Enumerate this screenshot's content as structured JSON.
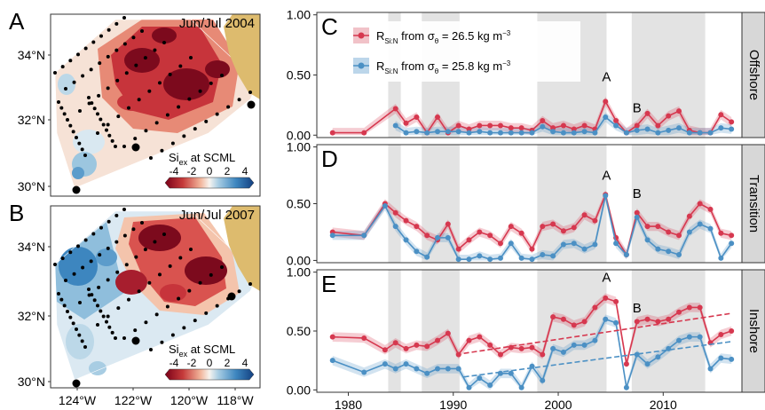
{
  "maps": [
    {
      "panel_letter": "A",
      "title": "Jun/Jul 2004",
      "colorbar_label_main": "Si",
      "colorbar_label_sub": "ex",
      "colorbar_label_rest": " at SCML",
      "colorbar_ticks": [
        "-4",
        "-2",
        "0",
        "2",
        "4"
      ]
    },
    {
      "panel_letter": "B",
      "title": "Jun/Jul 2007",
      "colorbar_label_main": "Si",
      "colorbar_label_sub": "ex",
      "colorbar_label_rest": " at SCML",
      "colorbar_ticks": [
        "-4",
        "-2",
        "0",
        "2",
        "4"
      ]
    }
  ],
  "map_axes": {
    "lat_labels": [
      "34°N",
      "32°N",
      "30°N"
    ],
    "lon_labels": [
      "124°W",
      "122°W",
      "120°W",
      "118°W"
    ]
  },
  "colors": {
    "red_series": "#d6384f",
    "blue_series": "#4b90c4",
    "land": "#ddbb6e",
    "strip_bg": "#d7d7d7",
    "shade": "#e3e3e3"
  },
  "legend": {
    "red_main": "R",
    "red_sub": "Si:N",
    "red_rest": " from σ",
    "red_rest_sub": "θ",
    "red_value": " = 26.5 kg m",
    "red_sup": "−3",
    "blue_main": "R",
    "blue_sub": "Si:N",
    "blue_rest": " from σ",
    "blue_rest_sub": "θ",
    "blue_value": " = 25.8 kg m",
    "blue_sup": "−3"
  },
  "chart_data": {
    "type": "line",
    "x_ticks": [
      "1980",
      "1990",
      "2000",
      "2010"
    ],
    "xlim": [
      1977,
      2017.5
    ],
    "shaded_periods": [
      [
        1983.8,
        1985
      ],
      [
        1987,
        1990.6
      ],
      [
        1998,
        2004.6
      ],
      [
        2007,
        2014
      ]
    ],
    "panels": [
      {
        "letter": "C",
        "strip": "Offshore",
        "ylim": [
          -0.02,
          1.02
        ],
        "y_ticks": [
          "0.00",
          "0.50",
          "1.00"
        ],
        "annotations": [
          {
            "text": "A",
            "x": 2004.6,
            "y": 0.45
          },
          {
            "text": "B",
            "x": 2007.5,
            "y": 0.19
          }
        ],
        "series": [
          {
            "color": "red",
            "x": [
              1978.5,
              1981.5,
              1984.5,
              1985.5,
              1986.5,
              1987.5,
              1988.5,
              1989.5,
              1990.5,
              1991.5,
              1992.5,
              1993.5,
              1994.5,
              1995.5,
              1996.5,
              1997.5,
              1998.5,
              1999.5,
              2000.5,
              2001.5,
              2002.5,
              2003.5,
              2004.5,
              2005.5,
              2006.5,
              2007.5,
              2008.5,
              2009.5,
              2010.5,
              2011.5,
              2012.5,
              2013.5,
              2014.5,
              2015.5,
              2016.5
            ],
            "values": [
              0.02,
              0.02,
              0.22,
              0.1,
              0.15,
              0.02,
              0.15,
              0.02,
              0.08,
              0.05,
              0.08,
              0.08,
              0.08,
              0.06,
              0.06,
              0.04,
              0.12,
              0.06,
              0.08,
              0.05,
              0.08,
              0.05,
              0.28,
              0.12,
              0.02,
              0.08,
              0.18,
              0.08,
              0.16,
              0.2,
              0.04,
              0.02,
              0.02,
              0.17,
              0.11
            ]
          },
          {
            "color": "blue",
            "x": [
              1984.5,
              1985.5,
              1986.5,
              1987.5,
              1988.5,
              1989.5,
              1990.5,
              1991.5,
              1992.5,
              1993.5,
              1994.5,
              1995.5,
              1996.5,
              1997.5,
              1998.5,
              1999.5,
              2000.5,
              2001.5,
              2002.5,
              2003.5,
              2004.5,
              2005.5,
              2006.5,
              2007.5,
              2008.5,
              2009.5,
              2010.5,
              2011.5,
              2012.5,
              2013.5,
              2014.5,
              2015.5,
              2016.5
            ],
            "values": [
              0.08,
              0.02,
              0.03,
              0.02,
              0.03,
              0.03,
              0.03,
              0.02,
              0.03,
              0.02,
              0.02,
              0.02,
              0.02,
              0.02,
              0.07,
              0.03,
              0.02,
              0.02,
              0.03,
              0.02,
              0.15,
              0.08,
              0.02,
              0.04,
              0.05,
              0.02,
              0.04,
              0.06,
              0.02,
              0.02,
              0.02,
              0.06,
              0.05
            ]
          }
        ]
      },
      {
        "letter": "D",
        "strip": "Transition",
        "ylim": [
          -0.02,
          1.02
        ],
        "y_ticks": [
          "0.00",
          "0.50",
          "1.00"
        ],
        "annotations": [
          {
            "text": "A",
            "x": 2004.6,
            "y": 0.71
          },
          {
            "text": "B",
            "x": 2007.5,
            "y": 0.55
          }
        ],
        "series": [
          {
            "color": "red",
            "x": [
              1978.5,
              1981.5,
              1983.5,
              1984.5,
              1985.5,
              1986.5,
              1987.5,
              1988.5,
              1989.5,
              1990.5,
              1991.5,
              1992.5,
              1993.5,
              1994.5,
              1995.5,
              1996.5,
              1997.5,
              1998.5,
              1999.5,
              2000.5,
              2001.5,
              2002.5,
              2003.5,
              2004.5,
              2005.5,
              2006.5,
              2007.5,
              2008.5,
              2009.5,
              2010.5,
              2011.5,
              2012.5,
              2013.5,
              2014.5,
              2015.5,
              2016.5
            ],
            "values": [
              0.25,
              0.22,
              0.5,
              0.42,
              0.35,
              0.3,
              0.22,
              0.18,
              0.32,
              0.1,
              0.18,
              0.25,
              0.22,
              0.15,
              0.3,
              0.24,
              0.1,
              0.3,
              0.32,
              0.26,
              0.29,
              0.4,
              0.35,
              0.58,
              0.2,
              0.05,
              0.42,
              0.3,
              0.3,
              0.25,
              0.22,
              0.39,
              0.5,
              0.45,
              0.24,
              0.22
            ]
          },
          {
            "color": "blue",
            "x": [
              1978.5,
              1981.5,
              1983.5,
              1984.5,
              1985.5,
              1986.5,
              1987.5,
              1988.5,
              1989.5,
              1990.5,
              1991.5,
              1992.5,
              1993.5,
              1994.5,
              1995.5,
              1996.5,
              1997.5,
              1998.5,
              1999.5,
              2000.5,
              2001.5,
              2002.5,
              2003.5,
              2004.5,
              2005.5,
              2006.5,
              2007.5,
              2008.5,
              2009.5,
              2010.5,
              2011.5,
              2012.5,
              2013.5,
              2014.5,
              2015.5,
              2016.5
            ],
            "values": [
              0.22,
              0.22,
              0.48,
              0.3,
              0.18,
              0.08,
              0.03,
              0.2,
              0.2,
              0.01,
              0.01,
              0.04,
              0.01,
              0.02,
              0.15,
              0.02,
              0.01,
              0.05,
              0.04,
              0.14,
              0.15,
              0.1,
              0.14,
              0.57,
              0.15,
              0.05,
              0.38,
              0.18,
              0.1,
              0.08,
              0.05,
              0.25,
              0.32,
              0.28,
              0.02,
              0.15
            ]
          }
        ]
      },
      {
        "letter": "E",
        "strip": "Inshore",
        "ylim": [
          -0.02,
          1.02
        ],
        "y_ticks": [
          "0.00",
          "0.50",
          "1.00"
        ],
        "annotations": [
          {
            "text": "A",
            "x": 2004.6,
            "y": 0.92
          },
          {
            "text": "B",
            "x": 2007.5,
            "y": 0.66
          }
        ],
        "series": [
          {
            "color": "red",
            "x": [
              1978.5,
              1981.5,
              1983.5,
              1984.5,
              1985.5,
              1986.5,
              1987.5,
              1988.5,
              1989.5,
              1990.5,
              1991.5,
              1992.5,
              1993.5,
              1994.5,
              1995.5,
              1996.5,
              1997.5,
              1998.5,
              1999.5,
              2000.5,
              2001.5,
              2002.5,
              2003.5,
              2004.5,
              2005.5,
              2006.5,
              2007.5,
              2008.5,
              2009.5,
              2010.5,
              2011.5,
              2012.5,
              2013.5,
              2014.5,
              2015.5,
              2016.5
            ],
            "values": [
              0.45,
              0.44,
              0.34,
              0.4,
              0.35,
              0.38,
              0.37,
              0.42,
              0.48,
              0.3,
              0.42,
              0.45,
              0.38,
              0.3,
              0.36,
              0.35,
              0.36,
              0.3,
              0.62,
              0.6,
              0.55,
              0.58,
              0.7,
              0.78,
              0.75,
              0.22,
              0.58,
              0.6,
              0.58,
              0.6,
              0.66,
              0.7,
              0.7,
              0.4,
              0.47,
              0.5
            ]
          },
          {
            "color": "blue",
            "x": [
              1978.5,
              1981.5,
              1983.5,
              1984.5,
              1985.5,
              1986.5,
              1987.5,
              1988.5,
              1989.5,
              1990.5,
              1991.5,
              1992.5,
              1993.5,
              1994.5,
              1995.5,
              1996.5,
              1997.5,
              1998.5,
              1999.5,
              2000.5,
              2001.5,
              2002.5,
              2003.5,
              2004.5,
              2005.5,
              2006.5,
              2007.5,
              2008.5,
              2009.5,
              2010.5,
              2011.5,
              2012.5,
              2013.5,
              2014.5,
              2015.5,
              2016.5
            ],
            "values": [
              0.25,
              0.15,
              0.22,
              0.18,
              0.22,
              0.18,
              0.14,
              0.18,
              0.18,
              0.18,
              0.02,
              0.1,
              0.04,
              0.14,
              0.14,
              0.02,
              0.2,
              0.08,
              0.35,
              0.32,
              0.38,
              0.38,
              0.42,
              0.6,
              0.57,
              0.02,
              0.3,
              0.22,
              0.28,
              0.35,
              0.42,
              0.45,
              0.45,
              0.18,
              0.27,
              0.26
            ]
          }
        ],
        "trends": [
          {
            "color": "red",
            "x": [
              1991,
              2016.5
            ],
            "y": [
              0.31,
              0.65
            ]
          },
          {
            "color": "blue",
            "x": [
              1991,
              2016.5
            ],
            "y": [
              0.11,
              0.41
            ]
          }
        ]
      }
    ]
  }
}
